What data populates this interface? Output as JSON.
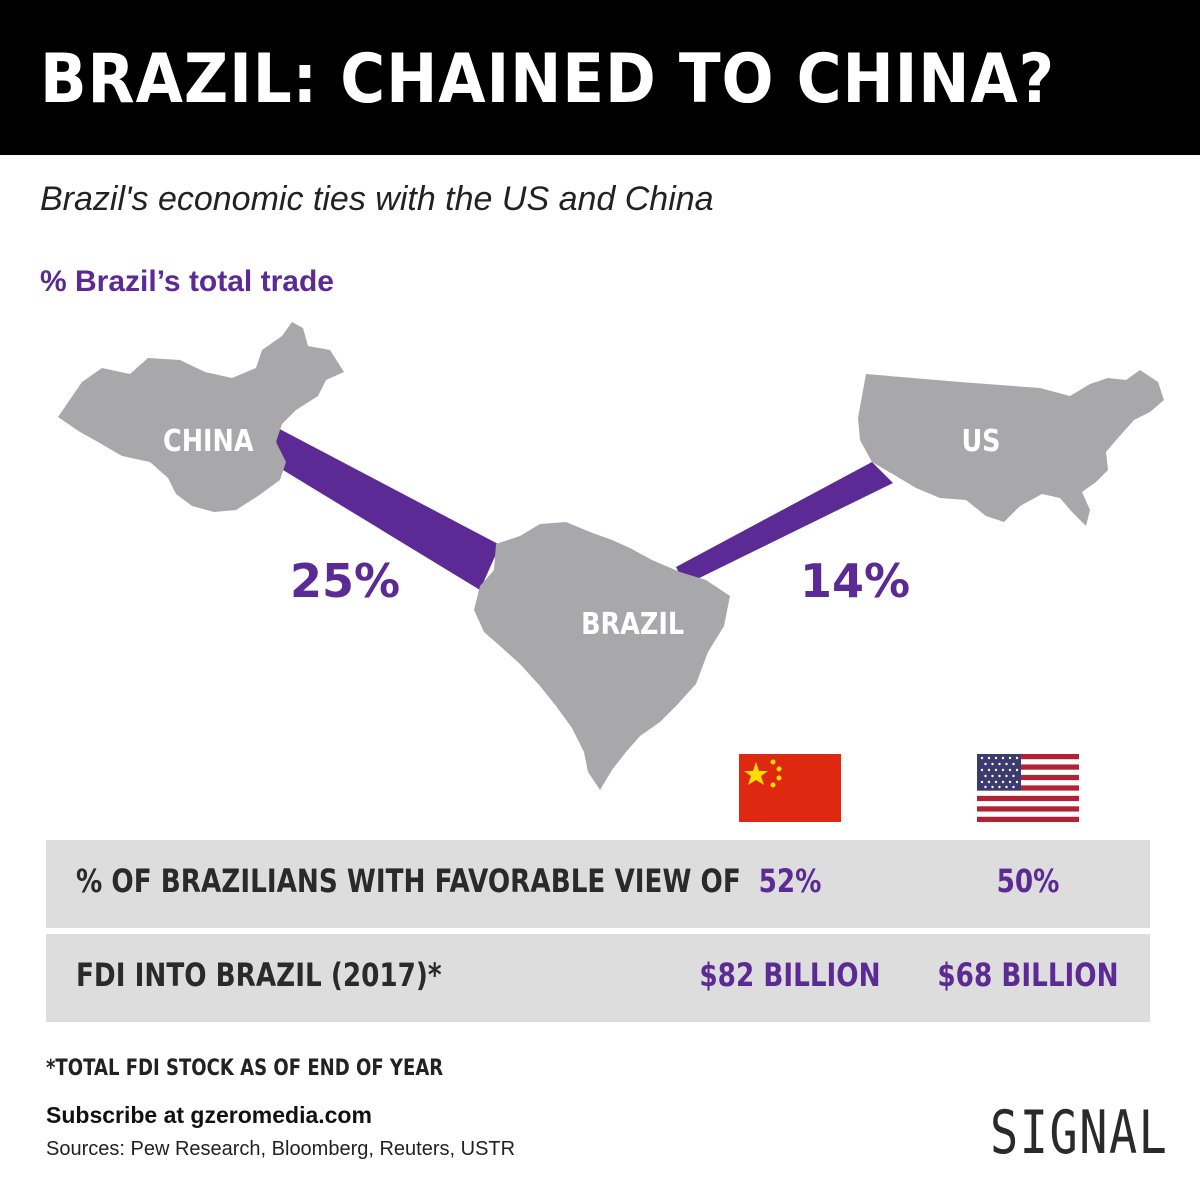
{
  "title": "BRAZIL: CHAINED TO CHINA?",
  "subtitle": "Brazil's economic ties with the US and China",
  "section_title": "% Brazil’s total trade",
  "map": {
    "china_label": "CHINA",
    "us_label": "US",
    "brazil_label": "BRAZIL",
    "china_trade_pct": "25%",
    "us_trade_pct": "14%",
    "land_color": "#a8a8aa",
    "link_color": "#5b2a95"
  },
  "flags": {
    "china": "china-flag-icon",
    "us": "us-flag-icon"
  },
  "table": {
    "rows": [
      {
        "label": "% OF BRAZILIANS WITH FAVORABLE VIEW OF",
        "china": "52%",
        "us": "50%"
      },
      {
        "label": "FDI INTO BRAZIL (2017)*",
        "china": "$82 BILLION",
        "us": "$68 BILLION"
      }
    ]
  },
  "footnote": "*TOTAL FDI STOCK AS OF END OF YEAR",
  "subscribe": "Subscribe at gzeromedia.com",
  "sources": "Sources: Pew Research, Bloomberg, Reuters, USTR",
  "logo": "SIGNAL",
  "colors": {
    "accent": "#5b2a95",
    "header_bg": "#000000",
    "row_bg": "#dddddd"
  }
}
